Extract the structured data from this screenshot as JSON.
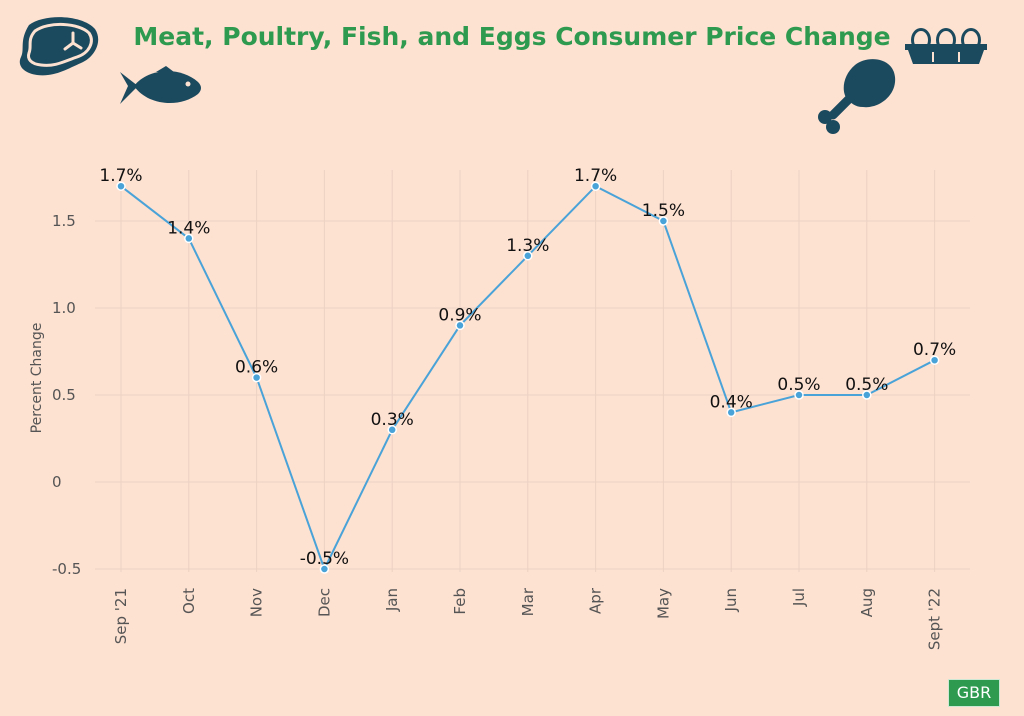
{
  "title": "Meat, Poultry, Fish, and Eggs Consumer Price Change",
  "badge": "GBR",
  "icons": [
    "steak-icon",
    "fish-icon",
    "drumstick-icon",
    "egg-carton-icon"
  ],
  "colors": {
    "title": "#2e9a4f",
    "line": "#4aa3d8",
    "background": "#fde1d1"
  },
  "chart_data": {
    "type": "line",
    "categories": [
      "Sep '21",
      "Oct",
      "Nov",
      "Dec",
      "Jan",
      "Feb",
      "Mar",
      "Apr",
      "May",
      "Jun",
      "Jul",
      "Aug",
      "Sept '22"
    ],
    "values": [
      1.7,
      1.4,
      0.6,
      -0.5,
      0.3,
      0.9,
      1.3,
      1.7,
      1.5,
      0.4,
      0.5,
      0.5,
      0.7
    ],
    "data_labels": [
      "1.7%",
      "1.4%",
      "0.6%",
      "-0.5%",
      "0.3%",
      "0.9%",
      "1.3%",
      "1.7%",
      "1.5%",
      "0.4%",
      "0.5%",
      "0.5%",
      "0.7%"
    ],
    "ylabel": "Percent Change",
    "y_ticks": [
      -0.5,
      0,
      0.5,
      1.0,
      1.5
    ],
    "y_tick_labels": [
      "-0.5",
      "0",
      "0.5",
      "1.0",
      "1.5"
    ],
    "ylim": [
      -0.5,
      1.7
    ],
    "grid": true
  }
}
